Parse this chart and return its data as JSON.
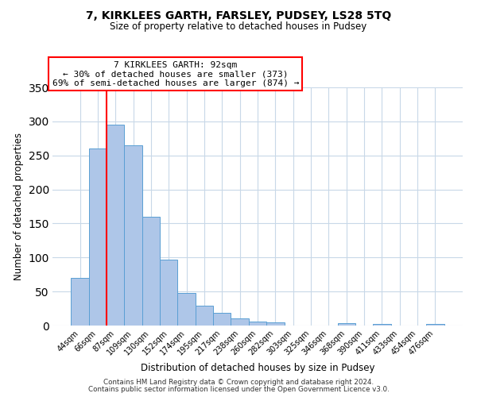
{
  "title": "7, KIRKLEES GARTH, FARSLEY, PUDSEY, LS28 5TQ",
  "subtitle": "Size of property relative to detached houses in Pudsey",
  "xlabel": "Distribution of detached houses by size in Pudsey",
  "ylabel": "Number of detached properties",
  "bar_labels": [
    "44sqm",
    "66sqm",
    "87sqm",
    "109sqm",
    "130sqm",
    "152sqm",
    "174sqm",
    "195sqm",
    "217sqm",
    "238sqm",
    "260sqm",
    "282sqm",
    "303sqm",
    "325sqm",
    "346sqm",
    "368sqm",
    "390sqm",
    "411sqm",
    "433sqm",
    "454sqm",
    "476sqm"
  ],
  "bar_heights": [
    70,
    260,
    295,
    265,
    160,
    97,
    48,
    29,
    19,
    10,
    6,
    5,
    0,
    0,
    0,
    3,
    0,
    2,
    0,
    0,
    2
  ],
  "bar_color": "#aec6e8",
  "bar_edge_color": "#5a9fd4",
  "vline_x": 1.5,
  "vline_color": "red",
  "annotation_title": "7 KIRKLEES GARTH: 92sqm",
  "annotation_line1": "← 30% of detached houses are smaller (373)",
  "annotation_line2": "69% of semi-detached houses are larger (874) →",
  "annotation_box_color": "white",
  "annotation_box_edge": "red",
  "ylim": [
    0,
    350
  ],
  "yticks": [
    0,
    50,
    100,
    150,
    200,
    250,
    300,
    350
  ],
  "footer1": "Contains HM Land Registry data © Crown copyright and database right 2024.",
  "footer2": "Contains public sector information licensed under the Open Government Licence v3.0.",
  "bg_color": "white",
  "grid_color": "#c8d8e8"
}
